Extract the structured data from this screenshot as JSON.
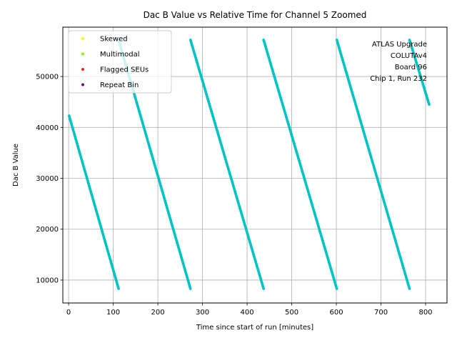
{
  "chart_data": {
    "type": "scatter",
    "title": "Dac B Value vs Relative Time for Channel 5 Zoomed",
    "xlabel": "Time since start of run [minutes]",
    "ylabel": "Dac B Value",
    "xlim": [
      -13,
      848
    ],
    "ylim": [
      5500,
      59700
    ],
    "xticks": [
      0,
      100,
      200,
      300,
      400,
      500,
      600,
      700,
      800
    ],
    "yticks": [
      10000,
      20000,
      30000,
      40000,
      50000
    ],
    "grid": true,
    "legend_position": "top-left",
    "legend": [
      {
        "label": "Skewed",
        "color": "#ffff00"
      },
      {
        "label": "Multimodal",
        "color": "#7fff00"
      },
      {
        "label": "Flagged SEUs",
        "color": "#ff2020"
      },
      {
        "label": "Repeat Bin",
        "color": "#800080"
      }
    ],
    "annotation_lines": [
      "ATLAS Upgrade",
      "COLUTAv4",
      "Board 96",
      "Chip 1, Run 232"
    ],
    "series": [
      {
        "name": "Dac B Value",
        "color": "#00c4c4",
        "segments": [
          {
            "x": [
              1,
              112
            ],
            "y": [
              42300,
              8300
            ]
          },
          {
            "x": [
              112,
              273
            ],
            "y": [
              57200,
              8300
            ]
          },
          {
            "x": [
              273,
              437
            ],
            "y": [
              57200,
              8300
            ]
          },
          {
            "x": [
              437,
              601
            ],
            "y": [
              57200,
              8300
            ]
          },
          {
            "x": [
              601,
              764
            ],
            "y": [
              57200,
              8300
            ]
          },
          {
            "x": [
              764,
              808
            ],
            "y": [
              57200,
              44500
            ]
          }
        ]
      }
    ]
  }
}
